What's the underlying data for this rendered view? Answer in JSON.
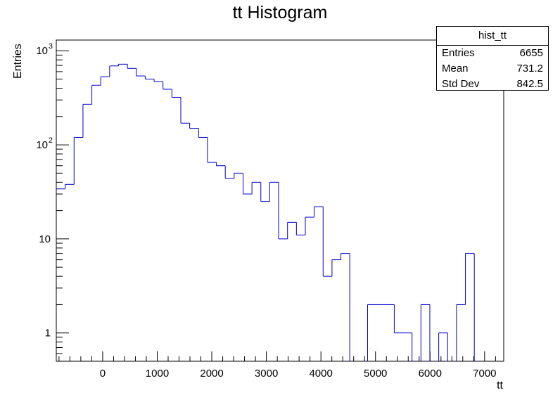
{
  "chart_data": {
    "type": "histogram",
    "title": "tt Histogram",
    "xlabel": "tt",
    "ylabel": "Entries",
    "yscale": "log",
    "xlim": [
      -850,
      7350
    ],
    "ylim": [
      0.5,
      1300
    ],
    "x_ticks": [
      0,
      1000,
      2000,
      3000,
      4000,
      5000,
      6000,
      7000
    ],
    "y_ticks": [
      {
        "value": 1,
        "label": "1"
      },
      {
        "value": 10,
        "label": "10"
      },
      {
        "value": 100,
        "label": "10",
        "sup": "2"
      },
      {
        "value": 1000,
        "label": "10",
        "sup": "3"
      }
    ],
    "bin_start": -850,
    "bin_width": 163,
    "counts": [
      34,
      38,
      120,
      270,
      430,
      530,
      690,
      720,
      650,
      540,
      500,
      470,
      390,
      320,
      170,
      150,
      120,
      65,
      60,
      44,
      50,
      30,
      40,
      25,
      40,
      10,
      15,
      11,
      17,
      22,
      4,
      6,
      7,
      0,
      0,
      2,
      2,
      2,
      1,
      1,
      0,
      2,
      0,
      1,
      0,
      2,
      7,
      0
    ],
    "line_color": "#0000cc",
    "grid": false,
    "legend": "top-right"
  },
  "stats_box": {
    "name": "hist_tt",
    "rows": [
      {
        "label": "Entries",
        "value": "6655"
      },
      {
        "label": "Mean",
        "value": "731.2"
      },
      {
        "label": "Std Dev",
        "value": "842.5"
      }
    ]
  }
}
